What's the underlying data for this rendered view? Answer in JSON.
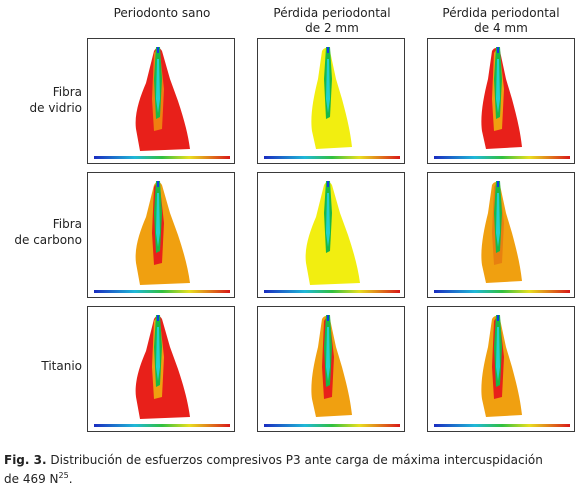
{
  "columns": [
    "Periodonto sano",
    "Pérdida periodontal",
    "Pérdida periodontal"
  ],
  "columns_sub": [
    "",
    "de 2 mm",
    "de 4 mm"
  ],
  "rows": [
    {
      "line1": "Fibra",
      "line2": "de vidrio"
    },
    {
      "line1": "Fibra",
      "line2": "de carbono"
    },
    {
      "line1": "Titanio",
      "line2": ""
    }
  ],
  "panels": [
    {
      "base": "#e8201a",
      "mid": "#f07f10"
    },
    {
      "base": "#f2ee10",
      "mid": "#f2ee10"
    },
    {
      "base": "#e8201a",
      "mid": "#f0a010"
    },
    {
      "base": "#f0a010",
      "mid": "#e8201a"
    },
    {
      "base": "#f2ee10",
      "mid": "#f2ee10"
    },
    {
      "base": "#f0a010",
      "mid": "#e88010"
    },
    {
      "base": "#e8201a",
      "mid": "#f0a010"
    },
    {
      "base": "#f0a010",
      "mid": "#e8201a"
    },
    {
      "base": "#f0a010",
      "mid": "#e8201a"
    }
  ],
  "caption": {
    "label": "Fig. 3.",
    "text": " Distribución de esfuerzos compresivos P3 ante carga de máxima intercuspidación",
    "line2": "de 469 N",
    "sup": "25",
    "end": "."
  }
}
